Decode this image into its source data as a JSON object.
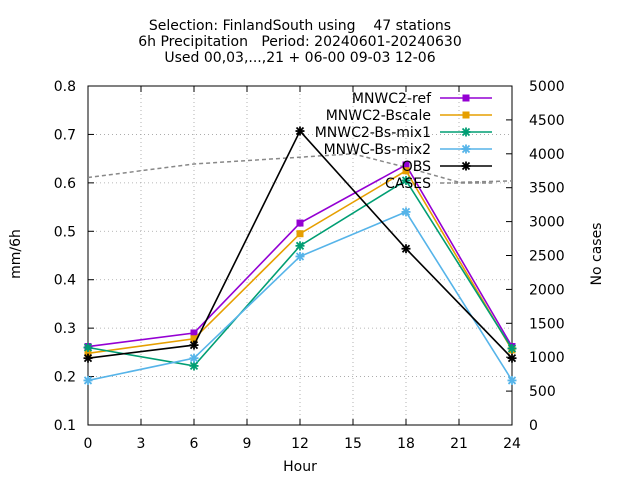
{
  "chart_data": {
    "type": "line",
    "title_lines": [
      "Selection: FinlandSouth using    47 stations",
      "6h Precipitation   Period: 20240601-20240630",
      "Used 00,03,...,21 + 06-00 09-03 12-06"
    ],
    "xlabel": "Hour",
    "ylabel": "mm/6h",
    "y2label": "No cases",
    "xlim": [
      0,
      24
    ],
    "ylim": [
      0.1,
      0.8
    ],
    "y2lim": [
      0,
      5000
    ],
    "xticks": [
      "0",
      "3",
      "6",
      "9",
      "12",
      "15",
      "18",
      "21",
      "24"
    ],
    "yticks": [
      "0.1",
      "0.2",
      "0.3",
      "0.4",
      "0.5",
      "0.6",
      "0.7",
      "0.8"
    ],
    "y2ticks": [
      "0",
      "500",
      "1000",
      "1500",
      "2000",
      "2500",
      "3000",
      "3500",
      "4000",
      "4500",
      "5000"
    ],
    "grid": true,
    "legend_position": "top-right",
    "x": [
      0,
      6,
      12,
      18,
      24
    ],
    "series": [
      {
        "name": "MNWC2-ref",
        "color": "#9400d3",
        "marker": "box",
        "axis": "y",
        "values": [
          0.262,
          0.29,
          0.517,
          0.637,
          0.262
        ]
      },
      {
        "name": "MNWC2-Bscale",
        "color": "#e69f00",
        "marker": "box",
        "axis": "y",
        "values": [
          0.248,
          0.278,
          0.495,
          0.625,
          0.255
        ]
      },
      {
        "name": "MNWC2-Bs-mix1",
        "color": "#009e73",
        "marker": "star",
        "axis": "y",
        "values": [
          0.26,
          0.222,
          0.47,
          0.605,
          0.258
        ]
      },
      {
        "name": "MNWC-Bs-mix2",
        "color": "#56b4e9",
        "marker": "star",
        "axis": "y",
        "values": [
          0.192,
          0.238,
          0.448,
          0.54,
          0.192
        ]
      },
      {
        "name": "OBS",
        "color": "#000000",
        "marker": "star",
        "axis": "y",
        "values": [
          0.238,
          0.265,
          0.707,
          0.464,
          0.238
        ]
      }
    ],
    "cases": {
      "name": "CASES",
      "color": "#888888",
      "axis": "y2",
      "dashed": true,
      "x": [
        0,
        3,
        6,
        9,
        12,
        15,
        18,
        21,
        24
      ],
      "values": [
        3650,
        3750,
        3850,
        3900,
        3950,
        4000,
        3800,
        3580,
        3600
      ]
    }
  }
}
